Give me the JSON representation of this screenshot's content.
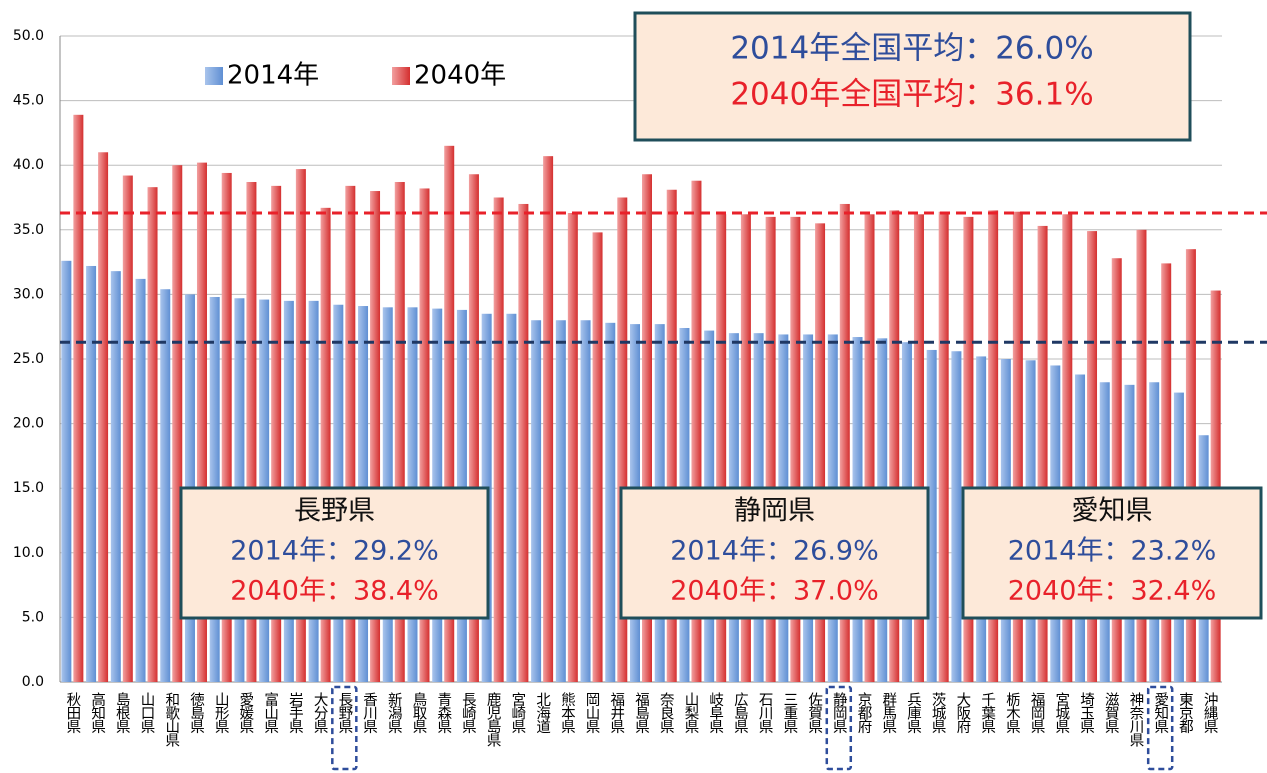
{
  "chart_data": {
    "type": "bar",
    "categories": [
      "秋田県",
      "高知県",
      "島根県",
      "山口県",
      "和歌山県",
      "徳島県",
      "山形県",
      "愛媛県",
      "富山県",
      "岩手県",
      "大分県",
      "長野県",
      "香川県",
      "新潟県",
      "鳥取県",
      "青森県",
      "長崎県",
      "鹿児島県",
      "宮崎県",
      "北海道",
      "熊本県",
      "岡山県",
      "福井県",
      "福島県",
      "奈良県",
      "山梨県",
      "岐阜県",
      "広島県",
      "石川県",
      "三重県",
      "佐賀県",
      "静岡県",
      "京都府",
      "群馬県",
      "兵庫県",
      "茨城県",
      "大阪府",
      "千葉県",
      "栃木県",
      "福岡県",
      "宮城県",
      "埼玉県",
      "滋賀県",
      "神奈川県",
      "愛知県",
      "東京都",
      "沖縄県"
    ],
    "series": [
      {
        "name": "2014年",
        "color": "#7fa7de",
        "values": [
          32.6,
          32.2,
          31.8,
          31.2,
          30.4,
          30.0,
          29.8,
          29.7,
          29.6,
          29.5,
          29.5,
          29.2,
          29.1,
          29.0,
          29.0,
          28.9,
          28.8,
          28.5,
          28.5,
          28.0,
          28.0,
          28.0,
          27.8,
          27.7,
          27.7,
          27.4,
          27.2,
          27.0,
          27.0,
          26.9,
          26.9,
          26.9,
          26.7,
          26.6,
          26.3,
          25.7,
          25.6,
          25.2,
          25.0,
          24.9,
          24.5,
          23.8,
          23.2,
          23.0,
          23.2,
          22.4,
          19.1
        ]
      },
      {
        "name": "2040年",
        "color": "#e05858",
        "values": [
          43.9,
          41.0,
          39.2,
          38.3,
          40.0,
          40.2,
          39.4,
          38.7,
          38.4,
          39.7,
          36.7,
          38.4,
          38.0,
          38.7,
          38.2,
          41.5,
          39.3,
          37.5,
          37.0,
          40.7,
          36.3,
          34.8,
          37.5,
          39.3,
          38.1,
          38.8,
          36.2,
          36.2,
          36.0,
          36.0,
          35.5,
          37.0,
          36.2,
          36.5,
          36.2,
          36.4,
          36.0,
          36.5,
          36.4,
          35.3,
          36.2,
          34.9,
          32.8,
          35.0,
          32.4,
          33.5,
          30.3
        ]
      }
    ],
    "ylim": [
      0,
      50
    ],
    "yticks": [
      {
        "value": 0,
        "label": "0.0"
      },
      {
        "value": 5,
        "label": "5.0"
      },
      {
        "value": 10,
        "label": "10.0"
      },
      {
        "value": 15,
        "label": "15.0"
      },
      {
        "value": 20,
        "label": "20.0"
      },
      {
        "value": 25,
        "label": "25.0"
      },
      {
        "value": 30,
        "label": "30.0"
      },
      {
        "value": 35,
        "label": "35.0"
      },
      {
        "value": 40,
        "label": "40.0"
      },
      {
        "value": 45,
        "label": "45.0"
      },
      {
        "value": 50,
        "label": "50.0"
      }
    ],
    "grid": true,
    "legend": "top-left",
    "reference_lines": [
      {
        "value": 36.3,
        "color": "#e8212a"
      },
      {
        "value": 26.3,
        "color": "#1f3864"
      }
    ],
    "highlighted_categories": [
      11,
      31,
      44
    ],
    "summary_box": {
      "lines": [
        "2014年全国平均：26.0%",
        "2040年全国平均：36.1%"
      ]
    },
    "callouts": [
      {
        "title": "長野県",
        "lines": [
          "2014年：29.2%",
          "2040年：38.4%"
        ]
      },
      {
        "title": "静岡県",
        "lines": [
          "2014年：26.9%",
          "2040年：37.0%"
        ]
      },
      {
        "title": "愛知県",
        "lines": [
          "2014年：23.2%",
          "2040年：32.4%"
        ]
      }
    ]
  }
}
